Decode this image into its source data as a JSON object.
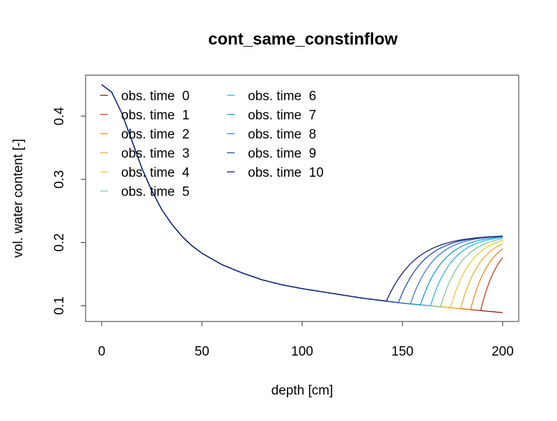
{
  "chart_data": {
    "type": "line",
    "title": "cont_same_constinflow",
    "xlabel": "depth [cm]",
    "ylabel": "vol. water content [-]",
    "xlim": [
      -8,
      208
    ],
    "ylim": [
      0.075,
      0.465
    ],
    "xticks": [
      0,
      50,
      100,
      150,
      200
    ],
    "xtick_labels": [
      "0",
      "50",
      "100",
      "150",
      "200"
    ],
    "yticks": [
      0.1,
      0.2,
      0.3,
      0.4
    ],
    "ytick_labels": [
      "0.1",
      "0.2",
      "0.3",
      "0.4"
    ],
    "grid": false,
    "legend_position": "top-left",
    "base_curve": {
      "x": [
        0,
        5,
        10,
        15,
        20,
        25,
        30,
        35,
        40,
        45,
        50,
        60,
        70,
        80,
        90,
        100,
        110,
        120,
        130,
        140,
        150,
        160,
        170,
        180,
        190,
        200
      ],
      "y": [
        0.45,
        0.438,
        0.405,
        0.362,
        0.318,
        0.282,
        0.252,
        0.229,
        0.21,
        0.195,
        0.183,
        0.165,
        0.152,
        0.141,
        0.133,
        0.127,
        0.122,
        0.117,
        0.112,
        0.108,
        0.104,
        0.101,
        0.098,
        0.095,
        0.092,
        0.089
      ]
    },
    "front_plateau": 0.212,
    "series": [
      {
        "name": "obs. time  0",
        "color": "#7a1a12",
        "front_depth": null,
        "end_value": 0.089
      },
      {
        "name": "obs. time  1",
        "color": "#c4401c",
        "front_depth": 189,
        "end_value": 0.176
      },
      {
        "name": "obs. time  2",
        "color": "#e8891c",
        "front_depth": 184,
        "end_value": 0.19
      },
      {
        "name": "obs. time  3",
        "color": "#f0ae2a",
        "front_depth": 179,
        "end_value": 0.198
      },
      {
        "name": "obs. time  4",
        "color": "#e0cc3a",
        "front_depth": 174,
        "end_value": 0.203
      },
      {
        "name": "obs. time  5",
        "color": "#80c894",
        "front_depth": 169,
        "end_value": 0.206
      },
      {
        "name": "obs. time  6",
        "color": "#2bb6ea",
        "front_depth": 164,
        "end_value": 0.208
      },
      {
        "name": "obs. time  7",
        "color": "#1c9ac8",
        "front_depth": 159,
        "end_value": 0.209
      },
      {
        "name": "obs. time  8",
        "color": "#3a78d0",
        "front_depth": 154,
        "end_value": 0.21
      },
      {
        "name": "obs. time  9",
        "color": "#2448b0",
        "front_depth": 148,
        "end_value": 0.211
      },
      {
        "name": "obs. time  10",
        "color": "#141c6e",
        "front_depth": 142,
        "end_value": 0.212
      }
    ]
  }
}
